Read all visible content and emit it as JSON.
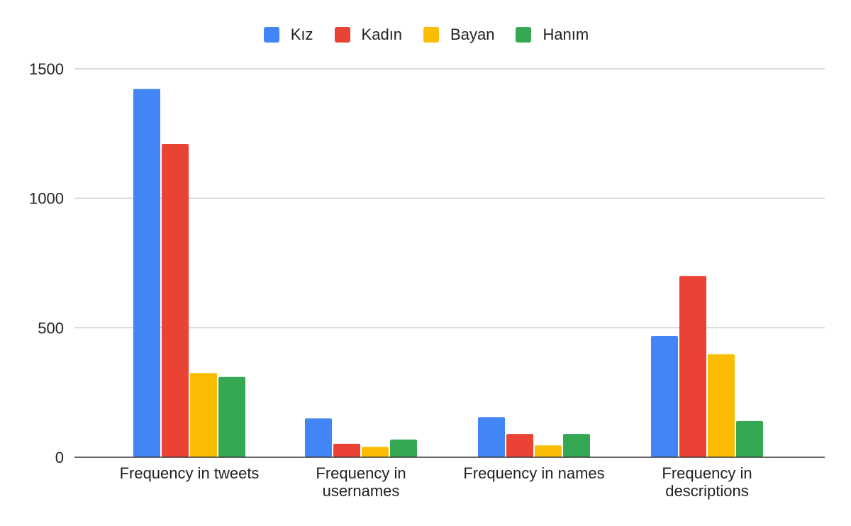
{
  "chart_data": {
    "type": "bar",
    "categories": [
      [
        "Frequency in tweets"
      ],
      [
        "Frequency in",
        "usernames"
      ],
      [
        "Frequency in names"
      ],
      [
        "Frequency in",
        "descriptions"
      ]
    ],
    "series": [
      {
        "name": "Kız",
        "color": "#4285F4",
        "values": [
          1422,
          150,
          155,
          468
        ]
      },
      {
        "name": "Kadın",
        "color": "#EA4335",
        "values": [
          1210,
          52,
          90,
          700
        ]
      },
      {
        "name": "Bayan",
        "color": "#FBBC04",
        "values": [
          325,
          40,
          46,
          398
        ]
      },
      {
        "name": "Hanım",
        "color": "#34A853",
        "values": [
          310,
          68,
          90,
          140
        ]
      }
    ],
    "y_ticks": [
      "0",
      "500",
      "1000",
      "1500"
    ],
    "ylim": [
      0,
      1500
    ],
    "grid": true,
    "legend_position": "top-center",
    "title": "",
    "xlabel": "",
    "ylabel": ""
  }
}
